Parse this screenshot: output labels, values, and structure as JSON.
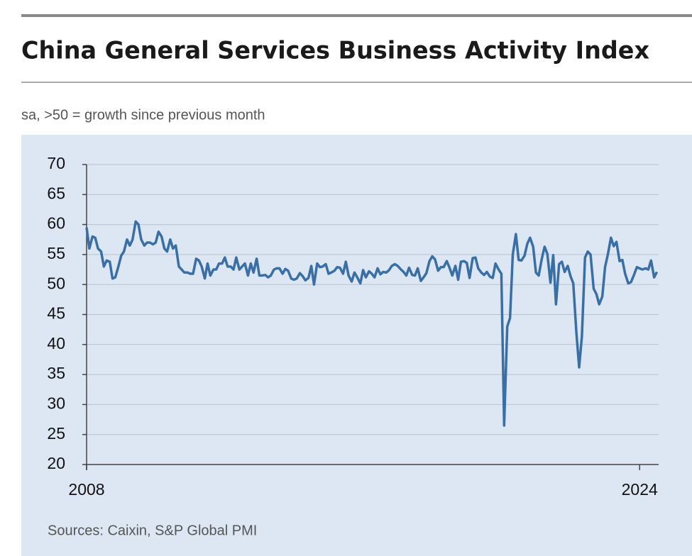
{
  "chart_data": {
    "type": "line",
    "title": "China General Services Business Activity Index",
    "subtitle": "sa, >50 = growth since previous month",
    "source": "Sources: Caixin, S&P Global PMI",
    "x": [
      2008.0,
      2008.08,
      2008.17,
      2008.25,
      2008.33,
      2008.42,
      2008.5,
      2008.58,
      2008.67,
      2008.75,
      2008.83,
      2008.92,
      2009.0,
      2009.08,
      2009.17,
      2009.25,
      2009.33,
      2009.42,
      2009.5,
      2009.58,
      2009.67,
      2009.75,
      2009.83,
      2009.92,
      2010.0,
      2010.08,
      2010.17,
      2010.25,
      2010.33,
      2010.42,
      2010.5,
      2010.58,
      2010.67,
      2010.75,
      2010.83,
      2010.92,
      2011.0,
      2011.08,
      2011.17,
      2011.25,
      2011.33,
      2011.42,
      2011.5,
      2011.58,
      2011.67,
      2011.75,
      2011.83,
      2011.92,
      2012.0,
      2012.08,
      2012.17,
      2012.25,
      2012.33,
      2012.42,
      2012.5,
      2012.58,
      2012.67,
      2012.75,
      2012.83,
      2012.92,
      2013.0,
      2013.08,
      2013.17,
      2013.25,
      2013.33,
      2013.42,
      2013.5,
      2013.58,
      2013.67,
      2013.75,
      2013.83,
      2013.92,
      2014.0,
      2014.08,
      2014.17,
      2014.25,
      2014.33,
      2014.42,
      2014.5,
      2014.58,
      2014.67,
      2014.75,
      2014.83,
      2014.92,
      2015.0,
      2015.08,
      2015.17,
      2015.25,
      2015.33,
      2015.42,
      2015.5,
      2015.58,
      2015.67,
      2015.75,
      2015.83,
      2015.92,
      2016.0,
      2016.08,
      2016.17,
      2016.25,
      2016.33,
      2016.42,
      2016.5,
      2016.58,
      2016.67,
      2016.75,
      2016.83,
      2016.92,
      2017.0,
      2017.08,
      2017.17,
      2017.25,
      2017.33,
      2017.42,
      2017.5,
      2017.58,
      2017.67,
      2017.75,
      2017.83,
      2017.92,
      2018.0,
      2018.08,
      2018.17,
      2018.25,
      2018.33,
      2018.42,
      2018.5,
      2018.58,
      2018.67,
      2018.75,
      2018.83,
      2018.92,
      2019.0,
      2019.08,
      2019.17,
      2019.25,
      2019.33,
      2019.42,
      2019.5,
      2019.58,
      2019.67,
      2019.75,
      2019.83,
      2019.92,
      2020.0,
      2020.08,
      2020.17,
      2020.25,
      2020.33,
      2020.42,
      2020.5,
      2020.58,
      2020.67,
      2020.75,
      2020.83,
      2020.92,
      2021.0,
      2021.08,
      2021.17,
      2021.25,
      2021.33,
      2021.42,
      2021.5,
      2021.58,
      2021.67,
      2021.75,
      2021.83,
      2021.92,
      2022.0,
      2022.08,
      2022.17,
      2022.25,
      2022.33,
      2022.42,
      2022.5,
      2022.58,
      2022.67,
      2022.75,
      2022.83,
      2022.92,
      2023.0,
      2023.08,
      2023.17,
      2023.25,
      2023.33,
      2023.42,
      2023.5,
      2023.58,
      2023.67,
      2023.75,
      2023.83,
      2023.92,
      2024.0,
      2024.08,
      2024.17,
      2024.25,
      2024.33,
      2024.42,
      2024.5
    ],
    "series": [
      {
        "name": "Business Activity Index",
        "color": "#3a6fa6",
        "values": [
          59.5,
          56,
          58,
          57.8,
          56,
          55.5,
          53,
          54,
          53.8,
          51,
          51.2,
          53,
          54.8,
          55.5,
          57.5,
          56.5,
          57.5,
          60.5,
          60,
          57.5,
          56.5,
          57,
          57,
          56.7,
          57,
          58.8,
          58,
          56,
          55.5,
          57.5,
          56,
          56.5,
          53,
          52.5,
          52,
          52,
          51.8,
          51.8,
          54.3,
          54,
          53,
          51,
          53.5,
          51.5,
          52.5,
          52.5,
          53.5,
          53.5,
          54.5,
          53,
          53,
          52.5,
          54.5,
          52.5,
          53,
          53.5,
          51.5,
          53.5,
          52,
          54.3,
          51.5,
          51.5,
          51.6,
          51.2,
          51.5,
          52.5,
          52.7,
          52.7,
          51.8,
          52.6,
          52.3,
          51.0,
          50.8,
          51.0,
          51.9,
          51.4,
          50.7,
          51.1,
          53.1,
          50.0,
          53.5,
          52.9,
          53.0,
          53.4,
          51.8,
          52.0,
          52.3,
          52.9,
          52.8,
          51.8,
          53.8,
          51.5,
          50.5,
          52.0,
          51.2,
          50.2,
          52.4,
          51.2,
          52.2,
          51.8,
          51.2,
          52.7,
          51.7,
          52.1,
          52.0,
          52.4,
          53.1,
          53.4,
          53.1,
          52.6,
          52.1,
          51.5,
          52.8,
          51.6,
          51.5,
          52.7,
          50.6,
          51.2,
          51.9,
          53.9,
          54.7,
          54.2,
          52.3,
          52.9,
          52.9,
          53.9,
          52.8,
          51.5,
          53.1,
          50.8,
          53.8,
          53.9,
          53.6,
          51.1,
          54.4,
          54.5,
          52.7,
          52.0,
          51.6,
          52.1,
          51.3,
          51.1,
          53.5,
          52.5,
          51.8,
          26.5,
          43.0,
          44.4,
          55.0,
          58.4,
          54.1,
          54.0,
          54.8,
          56.8,
          57.8,
          56.3,
          52.0,
          51.5,
          54.3,
          56.3,
          55.1,
          50.3,
          54.9,
          46.7,
          53.4,
          53.8,
          52.1,
          53.1,
          51.4,
          50.2,
          42.0,
          36.2,
          41.4,
          54.5,
          55.5,
          55.0,
          49.3,
          48.4,
          46.7,
          48.0,
          52.9,
          55.0,
          57.8,
          56.4,
          57.1,
          53.9,
          54.1,
          51.8,
          50.2,
          50.4,
          51.5,
          52.9,
          52.7,
          52.5,
          52.7,
          52.5,
          54.0,
          51.2,
          52.1
        ]
      }
    ],
    "xlim": [
      2008,
      2024.55
    ],
    "xticks": [
      2008,
      2024
    ],
    "ylim": [
      20,
      70
    ],
    "yticks": [
      20,
      25,
      30,
      35,
      40,
      45,
      50,
      55,
      60,
      65,
      70
    ],
    "grid": true
  }
}
